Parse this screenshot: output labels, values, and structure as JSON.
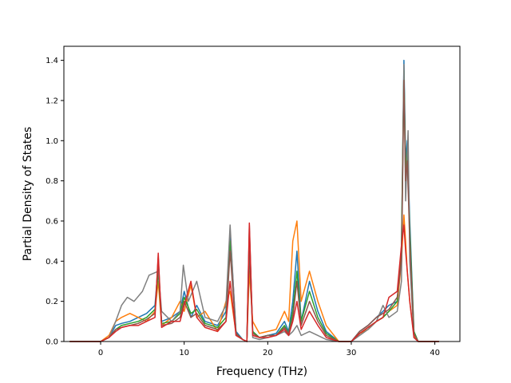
{
  "chart_data": {
    "type": "line",
    "title": "",
    "xlabel": "Frequency (THz)",
    "ylabel": "Partial Density of States",
    "xlim": [
      -4.4,
      43.0
    ],
    "ylim": [
      0,
      1.47
    ],
    "xticks": [
      0,
      10,
      20,
      30,
      40
    ],
    "yticks": [
      0.0,
      0.2,
      0.4,
      0.6,
      0.8,
      1.0,
      1.2,
      1.4
    ],
    "xtick_labels": [
      "0",
      "10",
      "20",
      "30",
      "40"
    ],
    "ytick_labels": [
      "0.0",
      "0.2",
      "0.4",
      "0.6",
      "0.8",
      "1.0",
      "1.2",
      "1.4"
    ],
    "grid": false,
    "legend": "none",
    "series": [
      {
        "color": "#1f77b4",
        "x": [
          -3.7,
          0.0,
          1.0,
          1.8,
          2.5,
          3.5,
          4.5,
          5.5,
          6.5,
          6.9,
          7.3,
          8.5,
          9.5,
          10.0,
          10.8,
          11.5,
          12.5,
          14.0,
          15.0,
          15.5,
          16.2,
          17.0,
          17.5,
          17.8,
          18.2,
          19.0,
          20.0,
          21.0,
          22.0,
          22.5,
          23.0,
          23.5,
          24.0,
          25.0,
          26.0,
          27.0,
          28.5,
          30.0,
          31.0,
          32.0,
          33.0,
          33.8,
          34.5,
          35.5,
          36.0,
          36.3,
          36.5,
          36.7,
          37.0,
          37.5,
          38.0,
          40.5
        ],
        "y": [
          0,
          0,
          0.02,
          0.08,
          0.09,
          0.1,
          0.12,
          0.14,
          0.18,
          0.38,
          0.1,
          0.12,
          0.15,
          0.25,
          0.12,
          0.18,
          0.1,
          0.08,
          0.15,
          0.55,
          0.05,
          0.01,
          0.0,
          0.55,
          0.05,
          0.02,
          0.03,
          0.04,
          0.1,
          0.05,
          0.2,
          0.45,
          0.1,
          0.3,
          0.15,
          0.05,
          0.0,
          0.0,
          0.05,
          0.08,
          0.12,
          0.15,
          0.18,
          0.2,
          0.45,
          1.4,
          0.9,
          1.0,
          0.6,
          0.05,
          0.0,
          0.0
        ]
      },
      {
        "color": "#ff7f0e",
        "x": [
          -3.7,
          0.0,
          1.0,
          1.8,
          2.5,
          3.5,
          4.5,
          5.5,
          6.5,
          6.9,
          7.3,
          8.5,
          9.5,
          10.0,
          10.8,
          11.5,
          12.5,
          14.0,
          15.0,
          15.5,
          16.2,
          17.0,
          17.5,
          17.8,
          18.2,
          19.0,
          20.0,
          21.0,
          22.0,
          22.5,
          23.0,
          23.5,
          24.0,
          25.0,
          26.0,
          27.0,
          28.5,
          30.0,
          31.0,
          32.0,
          33.0,
          33.8,
          34.5,
          35.5,
          36.0,
          36.3,
          36.5,
          36.7,
          37.0,
          37.5,
          38.0,
          40.5
        ],
        "y": [
          0,
          0,
          0.03,
          0.1,
          0.12,
          0.14,
          0.12,
          0.1,
          0.15,
          0.3,
          0.08,
          0.12,
          0.2,
          0.15,
          0.28,
          0.12,
          0.15,
          0.05,
          0.2,
          0.25,
          0.04,
          0.01,
          0.0,
          0.35,
          0.1,
          0.04,
          0.05,
          0.06,
          0.15,
          0.1,
          0.5,
          0.6,
          0.2,
          0.35,
          0.2,
          0.08,
          0.0,
          0.0,
          0.04,
          0.06,
          0.1,
          0.12,
          0.15,
          0.18,
          0.4,
          0.63,
          0.5,
          0.35,
          0.2,
          0.03,
          0.0,
          0.0
        ]
      },
      {
        "color": "#2ca02c",
        "x": [
          -3.7,
          0.0,
          1.0,
          1.8,
          2.5,
          3.5,
          4.5,
          5.5,
          6.5,
          6.9,
          7.3,
          8.5,
          9.5,
          10.0,
          10.8,
          11.5,
          12.5,
          14.0,
          15.0,
          15.5,
          16.2,
          17.0,
          17.5,
          17.8,
          18.2,
          19.0,
          20.0,
          21.0,
          22.0,
          22.5,
          23.0,
          23.5,
          24.0,
          25.0,
          26.0,
          27.0,
          28.5,
          30.0,
          31.0,
          32.0,
          33.0,
          33.8,
          34.5,
          35.5,
          36.0,
          36.3,
          36.5,
          36.7,
          37.0,
          37.5,
          38.0,
          40.5
        ],
        "y": [
          0,
          0,
          0.02,
          0.06,
          0.08,
          0.09,
          0.1,
          0.12,
          0.16,
          0.35,
          0.09,
          0.1,
          0.14,
          0.22,
          0.14,
          0.16,
          0.09,
          0.07,
          0.12,
          0.5,
          0.04,
          0.01,
          0.0,
          0.5,
          0.05,
          0.02,
          0.03,
          0.03,
          0.08,
          0.04,
          0.15,
          0.35,
          0.1,
          0.25,
          0.12,
          0.04,
          0.0,
          0.0,
          0.04,
          0.07,
          0.1,
          0.12,
          0.15,
          0.2,
          0.47,
          1.35,
          0.85,
          0.95,
          0.55,
          0.05,
          0.0,
          0.0
        ]
      },
      {
        "color": "#7f7f7f",
        "x": [
          -3.7,
          0.0,
          1.0,
          1.8,
          2.5,
          3.2,
          4.0,
          5.0,
          5.8,
          6.9,
          7.3,
          8.5,
          9.5,
          9.9,
          10.5,
          11.5,
          12.5,
          14.0,
          15.0,
          15.5,
          16.2,
          17.0,
          17.5,
          17.8,
          18.2,
          19.0,
          20.0,
          21.0,
          22.0,
          22.5,
          23.0,
          23.5,
          24.0,
          25.0,
          26.0,
          27.0,
          28.5,
          30.0,
          31.0,
          32.0,
          33.0,
          33.8,
          34.5,
          35.5,
          36.0,
          36.3,
          36.5,
          36.8,
          37.0,
          37.5,
          38.0,
          40.5
        ],
        "y": [
          0,
          0,
          0.02,
          0.1,
          0.18,
          0.22,
          0.2,
          0.25,
          0.33,
          0.35,
          0.15,
          0.1,
          0.15,
          0.38,
          0.2,
          0.3,
          0.12,
          0.1,
          0.18,
          0.58,
          0.03,
          0.01,
          0.0,
          0.58,
          0.02,
          0.01,
          0.02,
          0.03,
          0.05,
          0.03,
          0.05,
          0.08,
          0.03,
          0.05,
          0.03,
          0.01,
          0.0,
          0.0,
          0.03,
          0.06,
          0.1,
          0.18,
          0.12,
          0.15,
          0.3,
          1.38,
          0.7,
          1.05,
          0.4,
          0.02,
          0.0,
          0.0
        ]
      },
      {
        "color": "#8c564b",
        "x": [
          -3.7,
          0.0,
          1.0,
          1.8,
          2.5,
          3.5,
          4.5,
          5.5,
          6.5,
          6.9,
          7.3,
          8.5,
          9.5,
          10.0,
          10.8,
          11.5,
          12.5,
          14.0,
          15.0,
          15.5,
          16.2,
          17.0,
          17.5,
          17.8,
          18.2,
          19.0,
          20.0,
          21.0,
          22.0,
          22.5,
          23.0,
          23.5,
          24.0,
          25.0,
          26.0,
          27.0,
          28.5,
          30.0,
          31.0,
          32.0,
          33.0,
          33.8,
          34.5,
          35.5,
          36.0,
          36.3,
          36.5,
          36.7,
          37.0,
          37.5,
          38.0,
          40.5
        ],
        "y": [
          0,
          0,
          0.02,
          0.06,
          0.07,
          0.08,
          0.09,
          0.11,
          0.14,
          0.42,
          0.08,
          0.09,
          0.12,
          0.2,
          0.12,
          0.14,
          0.08,
          0.06,
          0.1,
          0.45,
          0.04,
          0.01,
          0.0,
          0.45,
          0.04,
          0.02,
          0.03,
          0.03,
          0.07,
          0.04,
          0.12,
          0.3,
          0.08,
          0.2,
          0.1,
          0.03,
          0.0,
          0.0,
          0.05,
          0.08,
          0.12,
          0.14,
          0.16,
          0.22,
          0.4,
          1.3,
          0.8,
          0.9,
          0.5,
          0.04,
          0.0,
          0.0
        ]
      },
      {
        "color": "#d62728",
        "x": [
          -3.7,
          0.0,
          1.0,
          1.8,
          2.5,
          3.5,
          4.5,
          5.5,
          6.5,
          6.9,
          7.3,
          8.5,
          9.5,
          10.0,
          10.8,
          11.5,
          12.5,
          14.0,
          15.0,
          15.5,
          16.2,
          17.0,
          17.5,
          17.8,
          18.2,
          19.0,
          20.0,
          21.0,
          22.0,
          22.5,
          23.0,
          23.5,
          24.0,
          25.0,
          26.0,
          27.0,
          28.5,
          30.0,
          31.0,
          32.0,
          33.0,
          33.8,
          34.5,
          35.5,
          36.0,
          36.3,
          36.5,
          36.7,
          37.0,
          37.5,
          38.0,
          40.5
        ],
        "y": [
          0,
          0,
          0.02,
          0.05,
          0.07,
          0.08,
          0.08,
          0.1,
          0.12,
          0.44,
          0.07,
          0.1,
          0.1,
          0.18,
          0.3,
          0.12,
          0.07,
          0.05,
          0.1,
          0.3,
          0.03,
          0.01,
          0.0,
          0.59,
          0.03,
          0.02,
          0.02,
          0.03,
          0.06,
          0.03,
          0.1,
          0.2,
          0.06,
          0.15,
          0.08,
          0.02,
          0.0,
          0.0,
          0.04,
          0.07,
          0.1,
          0.12,
          0.22,
          0.25,
          0.48,
          0.58,
          0.45,
          0.35,
          0.2,
          0.02,
          0.0,
          0.0
        ]
      }
    ]
  }
}
